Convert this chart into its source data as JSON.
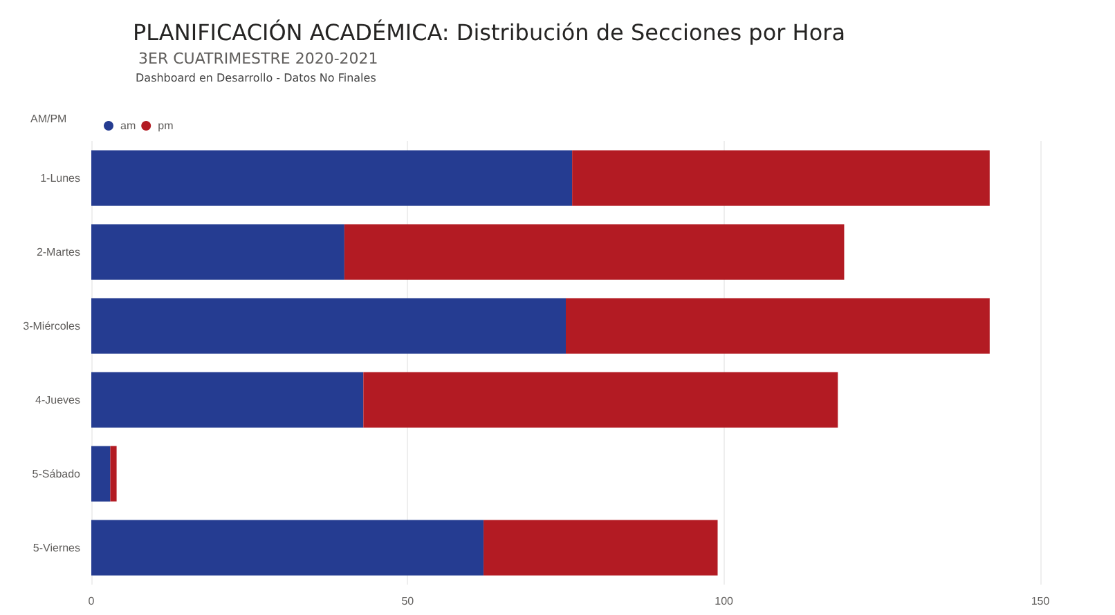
{
  "chart_data": {
    "type": "bar",
    "orientation": "horizontal",
    "stacked": true,
    "title": "PLANIFICACIÓN ACADÉMICA: Distribución de Secciones por Hora",
    "subtitle": "3ER CUATRIMESTRE 2020-2021",
    "annotations": [
      "Dashboard en Desarrollo - Datos No Finales"
    ],
    "legend_title": "AM/PM",
    "legend": "top left",
    "categories": [
      "1-Lunes",
      "2-Martes",
      "3-Miércoles",
      "4-Jueves",
      "5-Sábado",
      "5-Viernes"
    ],
    "series": [
      {
        "name": "am",
        "color": "#253c91",
        "values": [
          76,
          40,
          75,
          43,
          3,
          62
        ]
      },
      {
        "name": "pm",
        "color": "#b31b23",
        "values": [
          66,
          79,
          67,
          75,
          1,
          37
        ]
      }
    ],
    "xlim": [
      0,
      150
    ],
    "xticks": [
      0,
      50,
      100,
      150
    ],
    "grid": "x"
  }
}
